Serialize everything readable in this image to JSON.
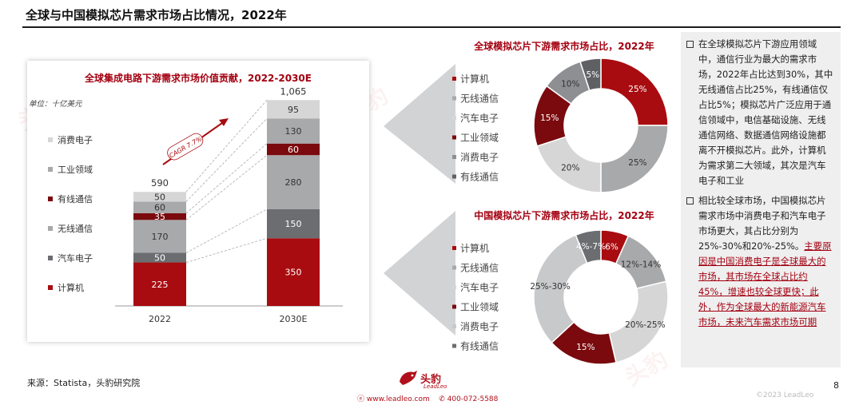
{
  "page": {
    "title": "全球与中国模拟芯片需求市场占比情况，2022年",
    "source": "来源：Statista，头豹研究院",
    "page_number": "8",
    "copyright": "©2023 LeadLeo",
    "logo_text": "头豹",
    "logo_sub": "LeadLeo",
    "contact_web": "www.leadleo.com",
    "contact_phone": "400-072-5588",
    "colors": {
      "dark_red": "#a80c10",
      "light_gray": "#d6d6d6",
      "mid_gray": "#a8a9ab",
      "dark_gray": "#6b6d70",
      "accent": "#a30010"
    }
  },
  "bullets": {
    "b1": "在全球模拟芯片下游应用领域中，通信行业为最大的需求市场，2022年占比达到30%，其中无线通信占比25%，有线通信仅占比5%；模拟芯片广泛应用于通信领域中，电信基础设施、无线通信网络、数据通信网络设施都离不开模拟芯片。此外，计算机为需求第二大领域，其次是汽车电子和工业",
    "b2_plain": "相比较全球市场，中国模拟芯片需求市场中消费电子和汽车电子市场更大，其占比分别为25%-30%和20%-25%。",
    "b2_highlight": "主要原因是中国消费电子是全球最大的市场，其市场在全球占比约45%，增速也较全球更快；此外，作为全球最大的新能源汽车市场，未来汽车需求市场可期"
  },
  "chart_data": [
    {
      "type": "bar",
      "stacked": true,
      "title": "全球集成电路下游需求市场价值贡献，2022-2030E",
      "unit_label": "单位：十亿美元",
      "categories": [
        "2022",
        "2030E"
      ],
      "totals": [
        "590",
        "1,065"
      ],
      "cagr_label": "CAGR 7.7%",
      "series": [
        {
          "name": "计算机",
          "values": [
            225,
            350
          ],
          "color": "#a80c10"
        },
        {
          "name": "汽车电子",
          "values": [
            50,
            150
          ],
          "color": "#6b6d70"
        },
        {
          "name": "无线通信",
          "values": [
            170,
            280
          ],
          "color": "#a8a9ab"
        },
        {
          "name": "有线通信",
          "values": [
            35,
            60
          ],
          "color": "#7a0a0e"
        },
        {
          "name": "工业领域",
          "values": [
            60,
            130
          ],
          "color": "#a8a9ab"
        },
        {
          "name": "消费电子",
          "values": [
            50,
            95
          ],
          "color": "#d6d6d6"
        }
      ],
      "legend_order": [
        "消费电子",
        "工业领域",
        "有线通信",
        "无线通信",
        "汽车电子",
        "计算机"
      ]
    },
    {
      "type": "pie",
      "donut": true,
      "title": "全球模拟芯片下游需求市场占比，2022年",
      "slices": [
        {
          "name": "计算机",
          "value": 25,
          "label": "25%",
          "color": "#a80c10"
        },
        {
          "name": "无线通信",
          "value": 25,
          "label": "25%",
          "color": "#a8a9ab"
        },
        {
          "name": "汽车电子",
          "value": 20,
          "label": "20%",
          "color": "#d6d6d6"
        },
        {
          "name": "工业领域",
          "value": 15,
          "label": "15%",
          "color": "#7a0a0e"
        },
        {
          "name": "消费电子",
          "value": 10,
          "label": "10%",
          "color": "#8d8f92"
        },
        {
          "name": "有线通信",
          "value": 5,
          "label": "5%",
          "color": "#5e6064"
        }
      ]
    },
    {
      "type": "pie",
      "donut": true,
      "title": "中国模拟芯片下游需求市场占比，2022年",
      "slices": [
        {
          "name": "计算机",
          "value": 6,
          "label": "6%",
          "color": "#a80c10"
        },
        {
          "name": "无线通信",
          "value": 13,
          "label": "12%-14%",
          "color": "#a8a9ab"
        },
        {
          "name": "汽车电子",
          "value": 22.5,
          "label": "20%-25%",
          "color": "#d6d6d6"
        },
        {
          "name": "工业领域",
          "value": 15,
          "label": "15%",
          "color": "#7a0a0e"
        },
        {
          "name": "消费电子",
          "value": 27.5,
          "label": "25%-30%",
          "color": "#c8c9cb"
        },
        {
          "name": "有线通信",
          "value": 5.5,
          "label": "4%-7%",
          "color": "#6b6d70"
        }
      ]
    }
  ]
}
